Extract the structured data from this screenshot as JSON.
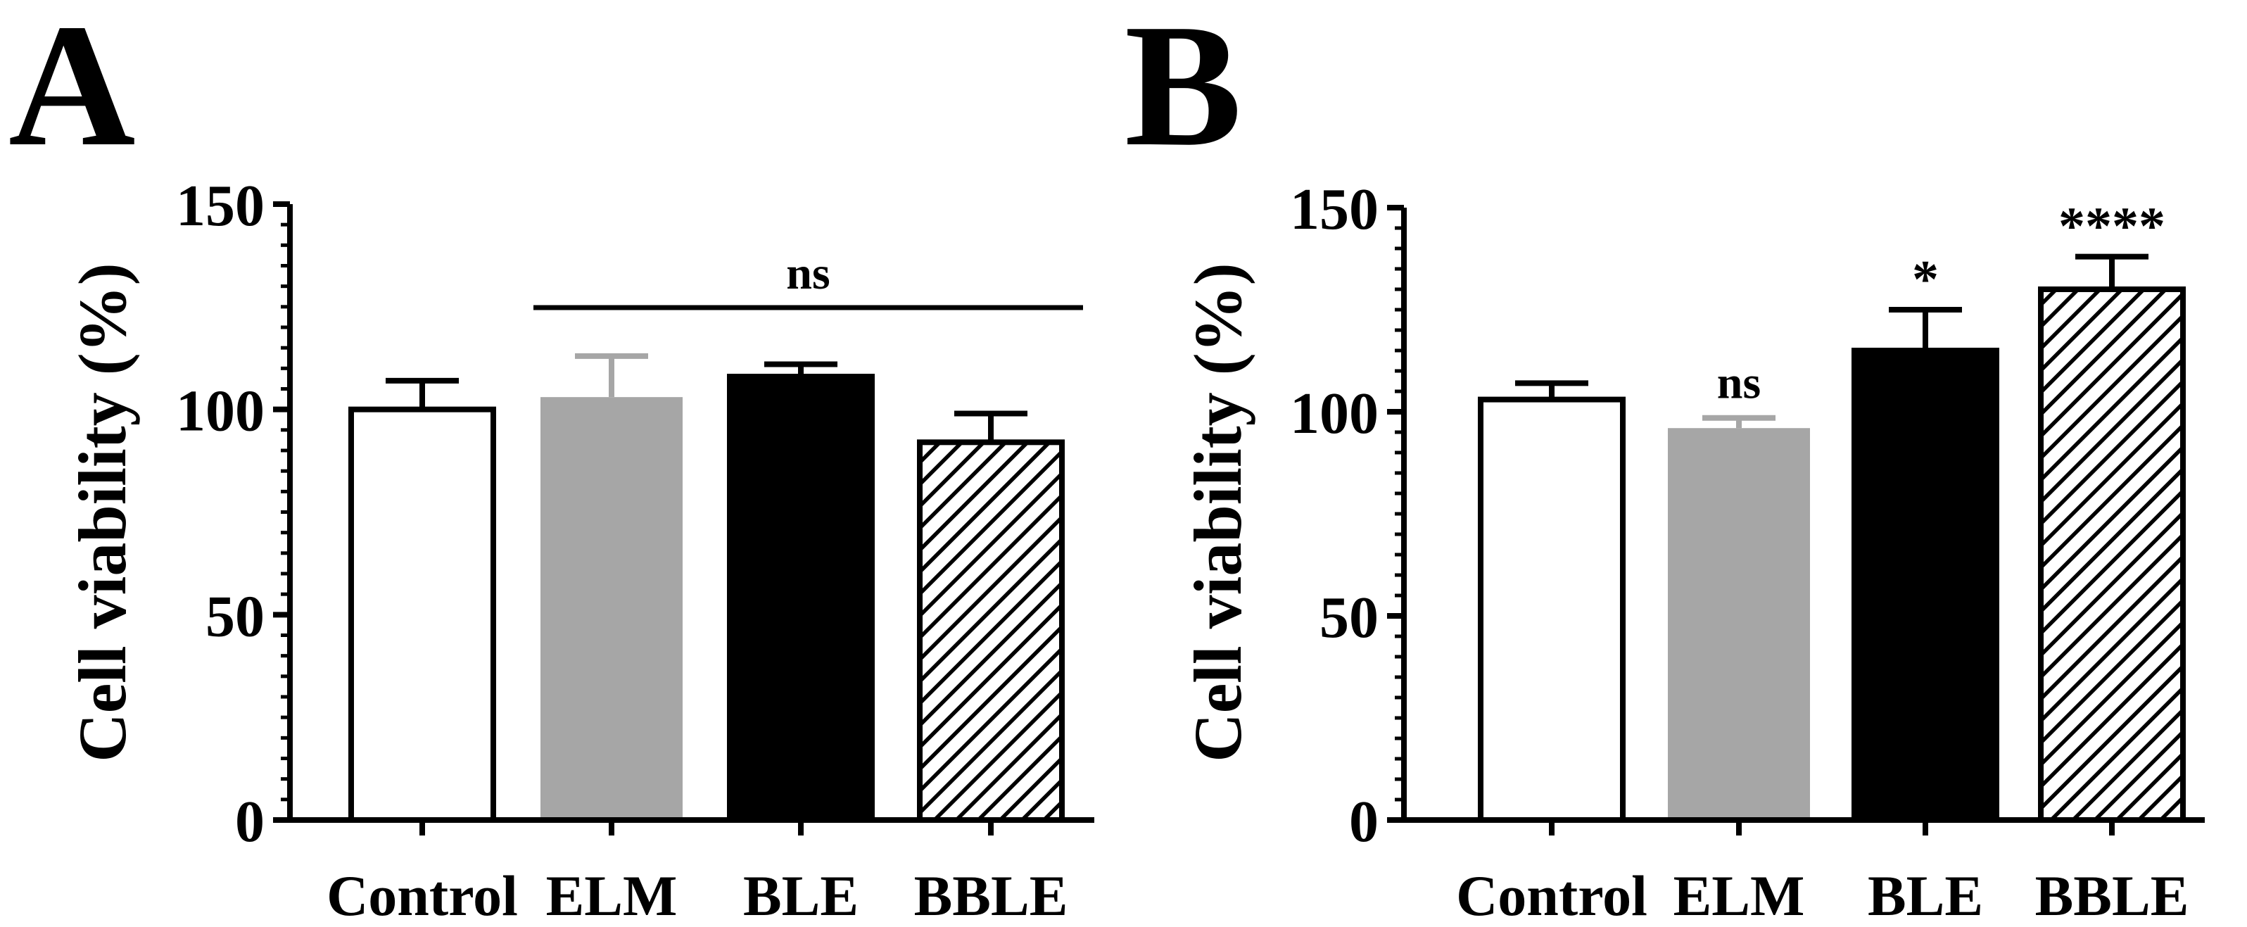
{
  "chart_data": [
    {
      "panel": "A",
      "type": "bar",
      "categories": [
        "Control",
        "ELM",
        "BLE",
        "BBLE"
      ],
      "values": [
        100,
        103,
        108,
        92
      ],
      "errors": [
        7,
        10,
        3,
        7
      ],
      "fills": [
        "white",
        "gray",
        "black",
        "hatched"
      ],
      "ylabel": "Cell viability (%)",
      "xlabel": "",
      "ylim": [
        0,
        150
      ],
      "yticks": [
        0,
        50,
        100,
        150
      ],
      "annotations": [
        {
          "text": "ns",
          "type": "bracket",
          "from": "ELM",
          "to": "BBLE"
        }
      ]
    },
    {
      "panel": "B",
      "type": "bar",
      "categories": [
        "Control",
        "ELM",
        "BLE",
        "BBLE"
      ],
      "values": [
        103,
        96,
        115,
        130
      ],
      "errors": [
        4,
        2.5,
        10,
        8
      ],
      "fills": [
        "white",
        "gray",
        "black",
        "hatched"
      ],
      "ylabel": "Cell viability (%)",
      "xlabel": "",
      "ylim": [
        0,
        150
      ],
      "yticks": [
        0,
        50,
        100,
        150
      ],
      "annotations": [
        {
          "text": "ns",
          "type": "bar",
          "at": "ELM"
        },
        {
          "text": "*",
          "type": "bar",
          "at": "BLE"
        },
        {
          "text": "****",
          "type": "bar",
          "at": "BBLE"
        }
      ]
    }
  ],
  "colors": {
    "gray": "#a6a6a6",
    "black": "#000000",
    "white": "#ffffff"
  }
}
